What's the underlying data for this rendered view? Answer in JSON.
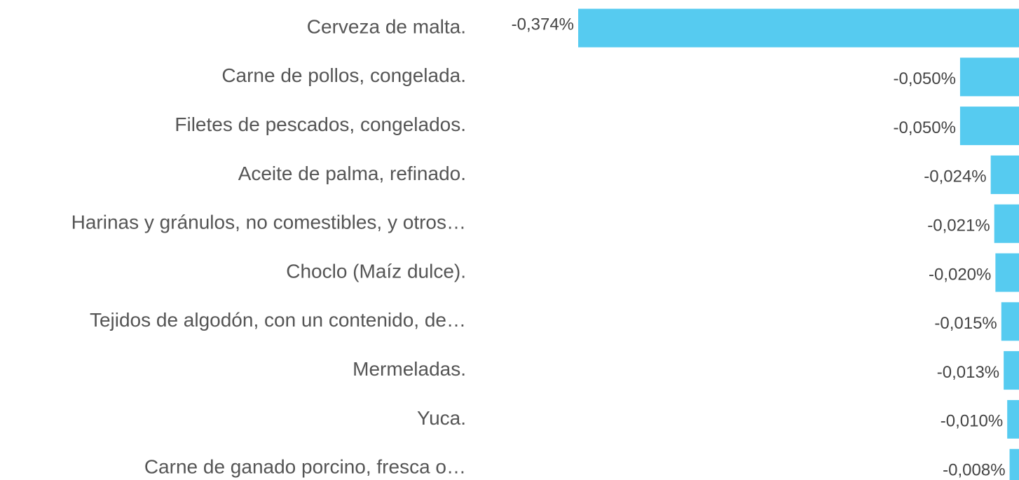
{
  "chart_data": {
    "type": "bar",
    "orientation": "horizontal",
    "color": "#56cbf0",
    "categories": [
      "Cerveza de malta.",
      "Carne de pollos, congelada.",
      "Filetes de pescados, congelados.",
      "Aceite de palma, refinado.",
      "Harinas y gránulos, no comestibles, y otros…",
      "Choclo (Maíz dulce).",
      "Tejidos de algodón, con un contenido, de…",
      "Mermeladas.",
      "Yuca.",
      "Carne de ganado porcino, fresca o…"
    ],
    "values": [
      -0.374,
      -0.05,
      -0.05,
      -0.024,
      -0.021,
      -0.02,
      -0.015,
      -0.013,
      -0.01,
      -0.008
    ],
    "value_labels": [
      "-0,374%",
      "-0,050%",
      "-0,050%",
      "-0,024%",
      "-0,021%",
      "-0,020%",
      "-0,015%",
      "-0,013%",
      "-0,010%",
      "-0,008%"
    ]
  }
}
